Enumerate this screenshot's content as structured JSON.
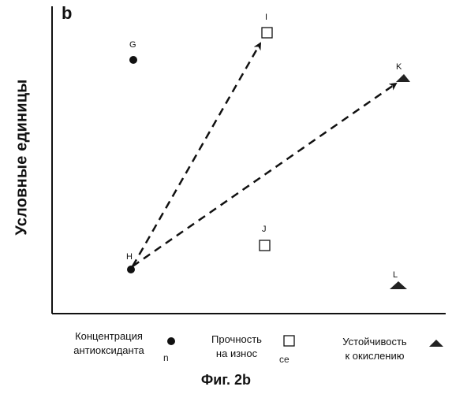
{
  "panel_label": "b",
  "y_axis_label": "Условные единицы",
  "points": [
    {
      "label": "G",
      "marker": "circle"
    },
    {
      "label": "I",
      "marker": "square"
    },
    {
      "label": "K",
      "marker": "triangle"
    },
    {
      "label": "J",
      "marker": "square"
    },
    {
      "label": "H",
      "marker": "circle"
    },
    {
      "label": "L",
      "marker": "triangle"
    }
  ],
  "arrows": [
    {
      "from": "H",
      "to": "I",
      "style": "dashed"
    },
    {
      "from": "H",
      "to": "K",
      "style": "dashed"
    }
  ],
  "legend": {
    "antioxidant": {
      "line1": "Концентрация",
      "line2": "антиоксиданта",
      "fragment": "n",
      "marker": "circle"
    },
    "wear": {
      "line1": "Прочность",
      "line2": "на износ",
      "fragment": "ce",
      "marker": "square"
    },
    "oxidation": {
      "line1": "Устойчивость",
      "line2": "к окислению",
      "marker": "triangle"
    }
  },
  "caption": "Фиг. 2b"
}
